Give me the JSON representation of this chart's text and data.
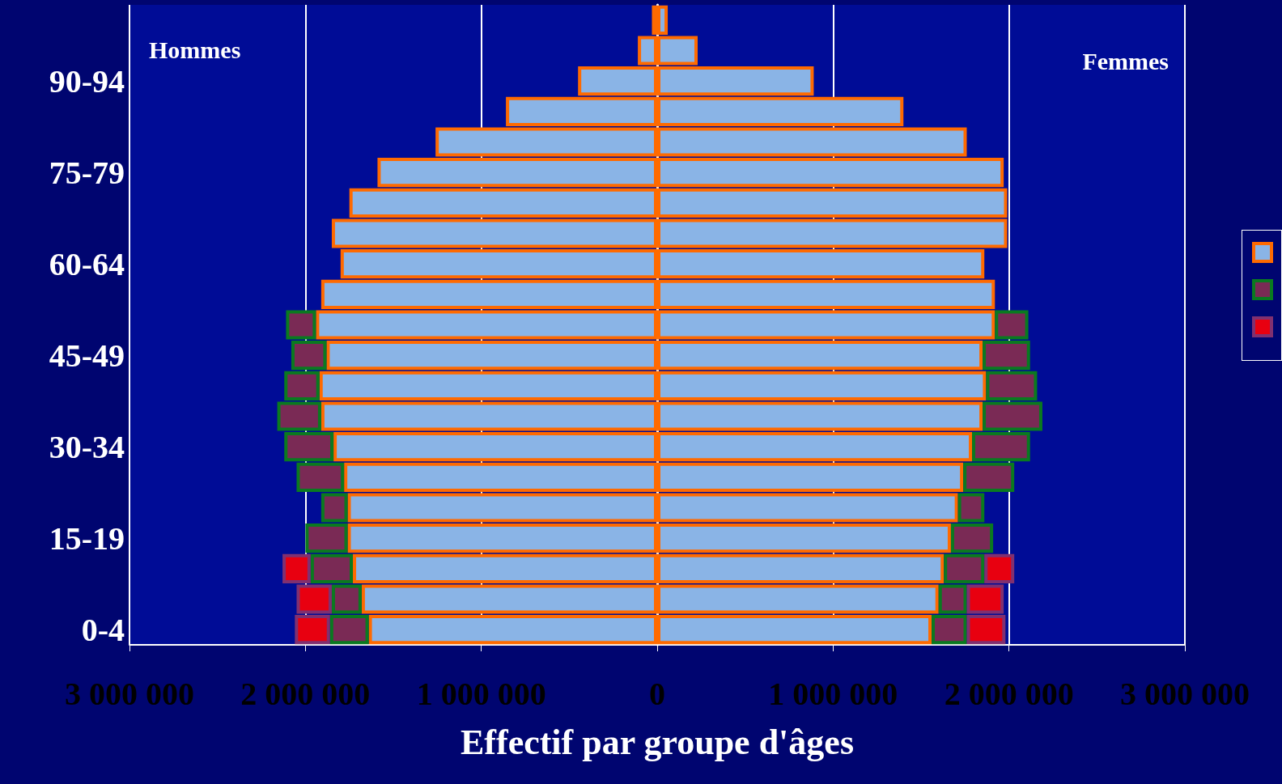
{
  "chart_data": {
    "type": "bar",
    "orientation": "horizontal",
    "stacked": true,
    "xlabel": "Effectif par groupe d'âges",
    "annotations": [
      "Hommes",
      "Femmes"
    ],
    "categories": [
      null,
      null,
      "90-94",
      null,
      null,
      "75-79",
      null,
      null,
      "60-64",
      null,
      null,
      "45-49",
      null,
      null,
      "30-34",
      null,
      null,
      "15-19",
      null,
      null,
      "0-4"
    ],
    "series": [
      {
        "color": "#8ab4e6",
        "values": [
          -30000,
          -110000,
          -450000,
          -860000,
          -1260000,
          -1590000,
          -1750000,
          -1850000,
          -1800000,
          -1910000,
          -1940000,
          -1880000,
          -1920000,
          -1910000,
          -1840000,
          -1780000,
          -1760000,
          -1760000,
          -1730000,
          -1680000,
          -1640000
        ]
      },
      {
        "color": "#7a2a55",
        "values": [
          null,
          null,
          null,
          null,
          null,
          null,
          null,
          null,
          null,
          null,
          -170000,
          -200000,
          -200000,
          -250000,
          -280000,
          -270000,
          -150000,
          -240000,
          -240000,
          -170000,
          -220000
        ]
      },
      {
        "color": "#e80010",
        "values": [
          null,
          null,
          null,
          null,
          null,
          null,
          null,
          null,
          null,
          null,
          null,
          null,
          null,
          null,
          null,
          null,
          null,
          null,
          -160000,
          -200000,
          -200000
        ]
      },
      {
        "color": "#8ab4e6",
        "values": [
          60000,
          230000,
          890000,
          1400000,
          1760000,
          1970000,
          1990000,
          1990000,
          1860000,
          1920000,
          1920000,
          1850000,
          1870000,
          1850000,
          1790000,
          1740000,
          1710000,
          1670000,
          1630000,
          1600000,
          1560000
        ]
      },
      {
        "color": "#7a2a55",
        "values": [
          null,
          null,
          null,
          null,
          null,
          null,
          null,
          null,
          null,
          null,
          190000,
          270000,
          290000,
          340000,
          330000,
          290000,
          150000,
          240000,
          230000,
          160000,
          200000
        ]
      },
      {
        "color": "#e80010",
        "values": [
          null,
          null,
          null,
          null,
          null,
          null,
          null,
          null,
          null,
          null,
          null,
          null,
          null,
          null,
          null,
          null,
          null,
          null,
          170000,
          210000,
          220000
        ]
      }
    ],
    "xlim": [
      -3000000,
      3000000
    ],
    "xticks": [
      {
        "value": -3000000,
        "label": "3 000 000"
      },
      {
        "value": -2000000,
        "label": "2 000 000"
      },
      {
        "value": -1000000,
        "label": "1 000 000"
      },
      0,
      {
        "value": 1000000,
        "label": "1 000 000"
      },
      {
        "value": 2000000,
        "label": "2 000 000"
      },
      {
        "value": 3000000,
        "label": "3 000 000"
      }
    ],
    "grid": "x"
  }
}
